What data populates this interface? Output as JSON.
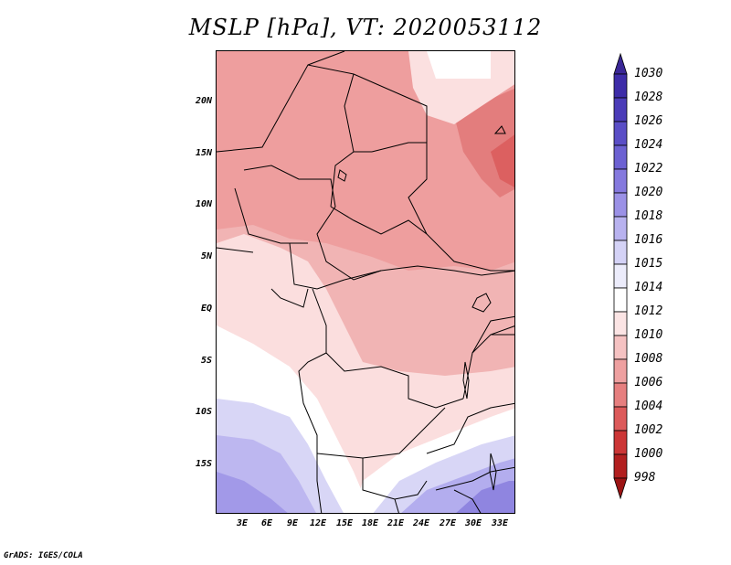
{
  "title": "MSLP [hPa], VT: 2020053112",
  "footer": "GrADS: IGES/COLA",
  "map": {
    "lat_labels": [
      "20N",
      "15N",
      "10N",
      "5N",
      "EQ",
      "5S",
      "10S",
      "15S"
    ],
    "lon_labels": [
      "3E",
      "6E",
      "9E",
      "12E",
      "15E",
      "18E",
      "21E",
      "24E",
      "27E",
      "30E",
      "33E"
    ]
  },
  "colorbar": {
    "levels": [
      "1030",
      "1028",
      "1026",
      "1024",
      "1022",
      "1020",
      "1018",
      "1016",
      "1015",
      "1014",
      "1012",
      "1010",
      "1008",
      "1006",
      "1004",
      "1002",
      "1000",
      "998"
    ],
    "colors": [
      "#3a2796",
      "#3d2ca8",
      "#4b3cb8",
      "#5a4ec6",
      "#6c61d2",
      "#8579de",
      "#9b91e6",
      "#b8b2ef",
      "#d4d2f6",
      "#ececfb",
      "#ffffff",
      "#fbe4e4",
      "#f5c2c2",
      "#eea0a0",
      "#e67f7f",
      "#dc5a5a",
      "#cc3636",
      "#b21f1f",
      "#9c1414"
    ]
  }
}
